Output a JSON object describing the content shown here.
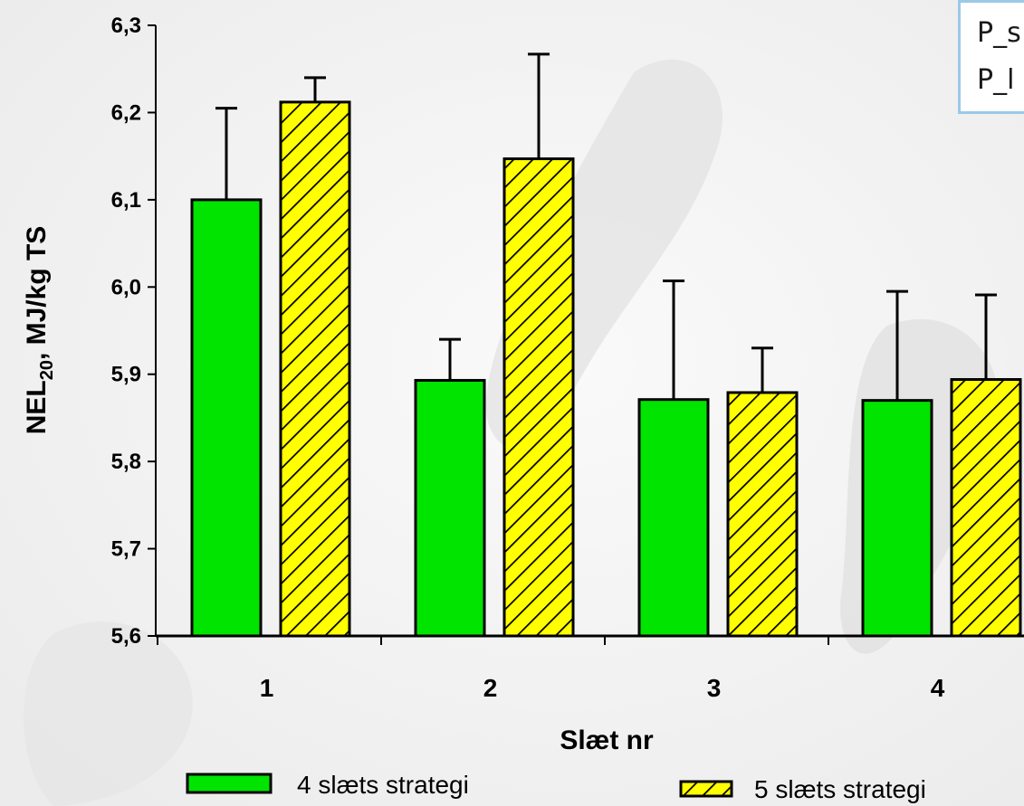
{
  "notes": [
    "P_s",
    "P_l"
  ],
  "chart_data": {
    "type": "bar",
    "title": "",
    "xlabel": "Slæt nr",
    "ylabel_main": "NEL",
    "ylabel_sub": "20",
    "ylabel_rest": ", MJ/kg TS",
    "ylim": [
      5.6,
      6.3
    ],
    "yticks": [
      "5,6",
      "5,7",
      "5,8",
      "5,9",
      "6,0",
      "6,1",
      "6,2",
      "6,3"
    ],
    "categories": [
      "1",
      "2",
      "3",
      "4"
    ],
    "legend_position": "bottom",
    "series": [
      {
        "name": "4 slæts strategi",
        "color": "#00e400",
        "pattern": "solid",
        "values": [
          6.1,
          5.893,
          5.871,
          5.87
        ],
        "error_upper": [
          6.205,
          5.94,
          6.007,
          5.995
        ]
      },
      {
        "name": "5 slæts strategi",
        "color": "#ffff00",
        "pattern": "diagonal-hatch",
        "values": [
          6.212,
          6.147,
          5.879,
          5.894
        ],
        "error_upper": [
          6.24,
          6.267,
          5.93,
          5.991
        ]
      }
    ]
  }
}
